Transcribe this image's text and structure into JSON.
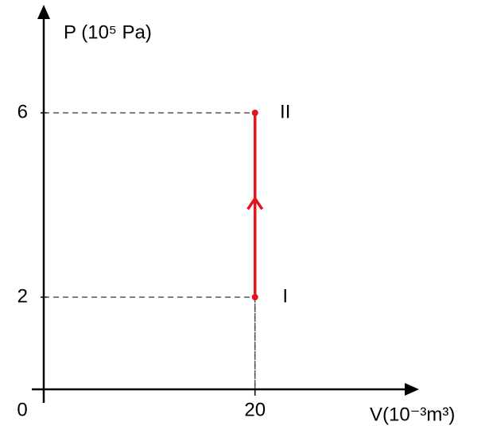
{
  "chart_data": {
    "type": "line",
    "y_label": "P (10⁵ Pa)",
    "x_label": "V(10⁻³m³)",
    "x": [
      20,
      20
    ],
    "series": [
      {
        "values": [
          2,
          6
        ],
        "color": "#e3141c",
        "point_labels": [
          "I",
          "II"
        ]
      }
    ],
    "xlim": [
      0,
      35
    ],
    "ylim": [
      0,
      8
    ],
    "xticks": [
      0,
      20
    ],
    "yticks": [
      2,
      6
    ],
    "guides": true,
    "direction_arrow": true
  }
}
